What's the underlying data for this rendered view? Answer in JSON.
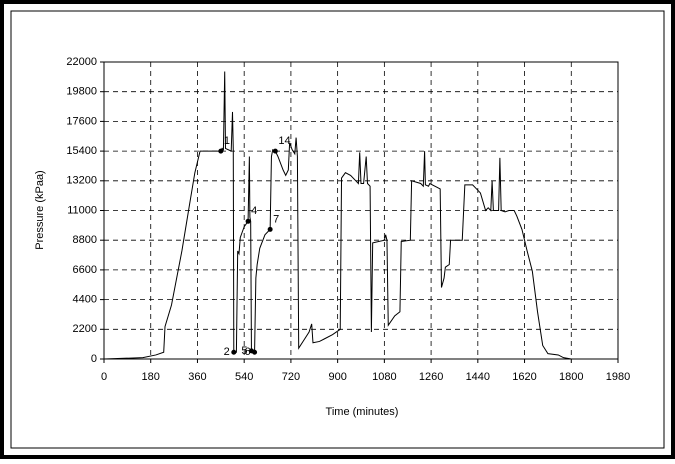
{
  "chart_data": {
    "type": "line",
    "x_label": "Time (minutes)",
    "y_label": "Pressure (kPaa)",
    "x": [
      0,
      150,
      200,
      230,
      235,
      260,
      300,
      330,
      350,
      370,
      450,
      455,
      460,
      465,
      468,
      490,
      495,
      498,
      500,
      510,
      515,
      520,
      525,
      540,
      555,
      560,
      562,
      565,
      568,
      580,
      585,
      590,
      600,
      620,
      640,
      645,
      650,
      660,
      670,
      690,
      700,
      710,
      715,
      725,
      735,
      740,
      745,
      750,
      770,
      790,
      800,
      805,
      830,
      850,
      880,
      910,
      915,
      930,
      950,
      970,
      980,
      985,
      990,
      1000,
      1010,
      1015,
      1025,
      1030,
      1035,
      1080,
      1085,
      1090,
      1095,
      1120,
      1140,
      1145,
      1180,
      1185,
      1220,
      1230,
      1235,
      1238,
      1250,
      1255,
      1295,
      1300,
      1310,
      1315,
      1330,
      1335,
      1350,
      1380,
      1390,
      1420,
      1430,
      1450,
      1470,
      1480,
      1490,
      1495,
      1500,
      1520,
      1525,
      1530,
      1545,
      1560,
      1580,
      1590,
      1610,
      1630,
      1650,
      1670,
      1690,
      1710,
      1750,
      1770,
      1800
    ],
    "values": [
      0,
      100,
      300,
      500,
      2400,
      4000,
      8000,
      11500,
      13800,
      15400,
      15400,
      15600,
      15500,
      21300,
      15600,
      15400,
      18300,
      15500,
      500,
      500,
      8000,
      7800,
      9000,
      9800,
      10200,
      15000,
      10500,
      10200,
      600,
      500,
      6000,
      7000,
      8200,
      9200,
      9600,
      15000,
      15500,
      15400,
      15000,
      14000,
      13600,
      14000,
      16000,
      15500,
      15200,
      16400,
      15000,
      800,
      1400,
      2000,
      2600,
      1200,
      1300,
      1500,
      1800,
      2200,
      13400,
      13800,
      13600,
      13200,
      13000,
      15300,
      13000,
      13000,
      15000,
      13000,
      12800,
      2000,
      8600,
      8800,
      9200,
      8800,
      2500,
      3200,
      3500,
      8700,
      8800,
      13200,
      13000,
      12800,
      15400,
      12900,
      12800,
      13000,
      12600,
      5300,
      6000,
      6800,
      7000,
      8800,
      8800,
      8800,
      12900,
      12900,
      12700,
      12300,
      11000,
      11200,
      11000,
      13200,
      11000,
      11000,
      14900,
      11000,
      10900,
      11000,
      11000,
      10600,
      9600,
      8000,
      6500,
      3500,
      1000,
      400,
      300,
      100,
      0
    ],
    "color": "#000000",
    "annotations": [
      {
        "label": "1",
        "x": 450,
        "y": 15400
      },
      {
        "label": "2",
        "x": 500,
        "y": 500
      },
      {
        "label": "4",
        "x": 555,
        "y": 10200
      },
      {
        "label": "5",
        "x": 568,
        "y": 600
      },
      {
        "label": "6",
        "x": 580,
        "y": 500
      },
      {
        "label": "7",
        "x": 640,
        "y": 9600
      },
      {
        "label": "14",
        "x": 660,
        "y": 15400
      }
    ],
    "xlim": [
      0,
      1980
    ],
    "xticks": [
      0,
      180,
      360,
      540,
      720,
      900,
      1080,
      1260,
      1440,
      1620,
      1800,
      1980
    ],
    "ylim": [
      0,
      22000
    ],
    "yticks": [
      0,
      2200,
      4400,
      6600,
      8800,
      11000,
      13200,
      15400,
      17600,
      19800,
      22000
    ],
    "grid": true
  }
}
